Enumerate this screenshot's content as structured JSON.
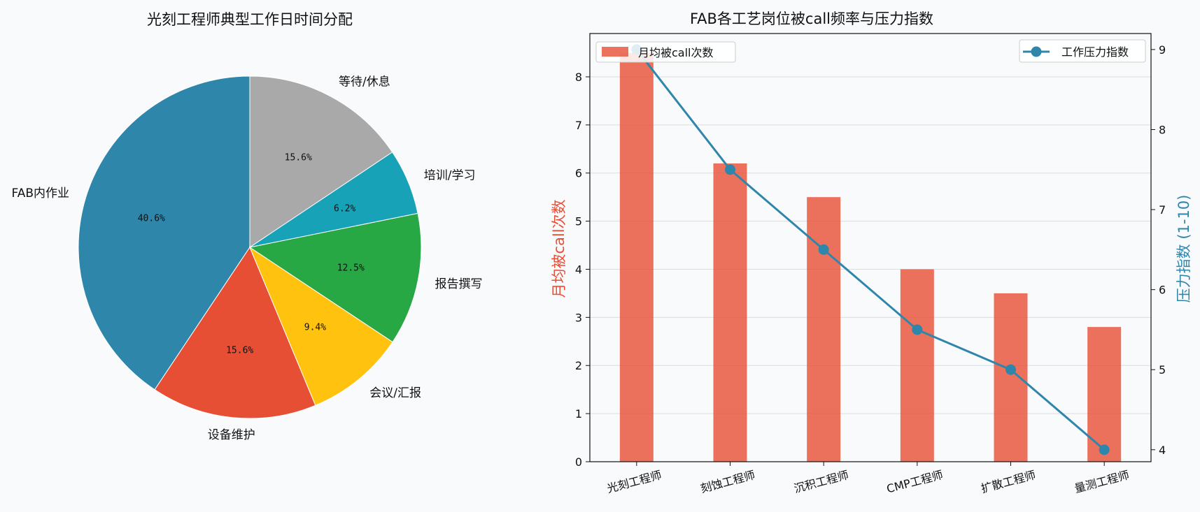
{
  "chart_data": [
    {
      "type": "pie",
      "title": "光刻工程师典型工作日时间分配",
      "slices": [
        {
          "label": "FAB内作业",
          "value": 40.6,
          "pct_label": "40.6%",
          "color": "#2e86ab"
        },
        {
          "label": "设备维护",
          "value": 15.6,
          "pct_label": "15.6%",
          "color": "#e74f35"
        },
        {
          "label": "会议/汇报",
          "value": 9.4,
          "pct_label": "9.4%",
          "color": "#ffc20e"
        },
        {
          "label": "报告撰写",
          "value": 12.5,
          "pct_label": "12.5%",
          "color": "#28a745"
        },
        {
          "label": "培训/学习",
          "value": 6.2,
          "pct_label": "6.2%",
          "color": "#17a2b8"
        },
        {
          "label": "等待/休息",
          "value": 15.6,
          "pct_label": "15.6%",
          "color": "#a9a9a9"
        }
      ],
      "start_angle_deg": 90,
      "direction": "counterclockwise"
    },
    {
      "type": "bar+line",
      "title": "FAB各工艺岗位被call频率与压力指数",
      "categories": [
        "光刻工程师",
        "刻蚀工程师",
        "沉积工程师",
        "CMP工程师",
        "扩散工程师",
        "量测工程师"
      ],
      "series": [
        {
          "name": "月均被call次数",
          "type": "bar",
          "axis": "left",
          "color": "#e74f35",
          "values": [
            8.5,
            6.2,
            5.5,
            4.0,
            3.5,
            2.8
          ]
        },
        {
          "name": "工作压力指数",
          "type": "line",
          "axis": "right",
          "color": "#2e86ab",
          "values": [
            9.0,
            7.5,
            6.5,
            5.5,
            5.0,
            4.0
          ]
        }
      ],
      "ylabel_left": "月均被call次数",
      "ylabel_right": "压力指数 (1-10)",
      "ylim_left": [
        0,
        8.9
      ],
      "ylim_right": [
        3.85,
        9.2
      ],
      "yticks_left": [
        0,
        1,
        2,
        3,
        4,
        5,
        6,
        7,
        8
      ],
      "yticks_right": [
        4,
        5,
        6,
        7,
        8,
        9
      ],
      "grid": "horizontal",
      "legend_left": "top-left",
      "legend_right": "top-right"
    }
  ]
}
